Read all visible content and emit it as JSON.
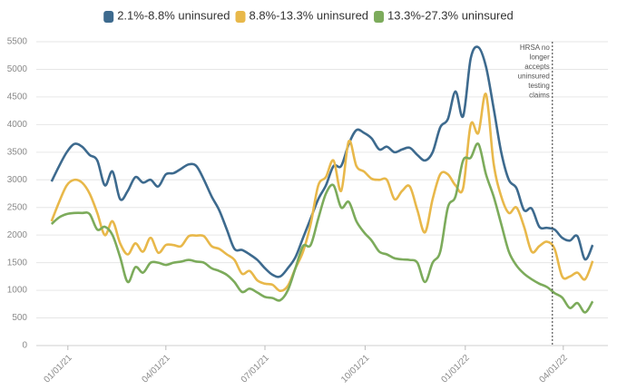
{
  "chart_data": {
    "type": "line",
    "x": [
      "2020-12-17",
      "2020-12-24",
      "2020-12-31",
      "2021-01-07",
      "2021-01-14",
      "2021-01-21",
      "2021-01-28",
      "2021-02-04",
      "2021-02-11",
      "2021-02-18",
      "2021-02-25",
      "2021-03-04",
      "2021-03-11",
      "2021-03-18",
      "2021-03-25",
      "2021-04-01",
      "2021-04-08",
      "2021-04-15",
      "2021-04-22",
      "2021-04-29",
      "2021-05-06",
      "2021-05-13",
      "2021-05-20",
      "2021-05-27",
      "2021-06-03",
      "2021-06-10",
      "2021-06-17",
      "2021-06-24",
      "2021-07-01",
      "2021-07-08",
      "2021-07-15",
      "2021-07-22",
      "2021-07-29",
      "2021-08-05",
      "2021-08-12",
      "2021-08-19",
      "2021-08-26",
      "2021-09-02",
      "2021-09-09",
      "2021-09-16",
      "2021-09-23",
      "2021-09-30",
      "2021-10-07",
      "2021-10-14",
      "2021-10-21",
      "2021-10-28",
      "2021-11-04",
      "2021-11-11",
      "2021-11-18",
      "2021-11-25",
      "2021-12-02",
      "2021-12-09",
      "2021-12-16",
      "2021-12-23",
      "2021-12-30",
      "2022-01-06",
      "2022-01-13",
      "2022-01-20",
      "2022-01-27",
      "2022-02-03",
      "2022-02-10",
      "2022-02-17",
      "2022-02-24",
      "2022-03-03",
      "2022-03-10",
      "2022-03-17",
      "2022-03-24",
      "2022-03-31",
      "2022-04-07",
      "2022-04-14",
      "2022-04-21",
      "2022-04-28"
    ],
    "series": [
      {
        "name": "2.1%-8.8% uninsured",
        "color": "#3d6a8e",
        "values": [
          2970,
          3250,
          3500,
          3650,
          3600,
          3450,
          3350,
          2900,
          3150,
          2650,
          2800,
          3050,
          2950,
          3000,
          2880,
          3100,
          3120,
          3200,
          3280,
          3250,
          3000,
          2700,
          2450,
          2100,
          1750,
          1730,
          1650,
          1550,
          1400,
          1280,
          1250,
          1400,
          1600,
          1950,
          2300,
          2650,
          2900,
          3250,
          3250,
          3650,
          3900,
          3850,
          3750,
          3550,
          3600,
          3500,
          3550,
          3580,
          3450,
          3350,
          3500,
          3950,
          4100,
          4600,
          4150,
          5200,
          5400,
          5050,
          4300,
          3500,
          3000,
          2850,
          2450,
          2480,
          2150,
          2130,
          2100,
          1950,
          1900,
          1980,
          1560,
          1820
        ]
      },
      {
        "name": "8.8%-13.3% uninsured",
        "color": "#e8b84a",
        "values": [
          2250,
          2600,
          2900,
          3000,
          2950,
          2750,
          2400,
          2000,
          2250,
          1850,
          1650,
          1850,
          1700,
          1950,
          1680,
          1820,
          1820,
          1800,
          1980,
          1990,
          1980,
          1800,
          1750,
          1650,
          1550,
          1300,
          1350,
          1180,
          1120,
          1100,
          990,
          1080,
          1400,
          1700,
          2200,
          2900,
          3050,
          3350,
          2800,
          3700,
          3250,
          3150,
          3020,
          3000,
          3000,
          2650,
          2800,
          2880,
          2450,
          2050,
          2650,
          3100,
          3100,
          2900,
          2850,
          4000,
          3850,
          4550,
          3300,
          2700,
          2400,
          2500,
          2150,
          1700,
          1800,
          1880,
          1750,
          1250,
          1250,
          1320,
          1200,
          1530
        ]
      },
      {
        "name": "13.3%-27.3% uninsured",
        "color": "#7cab5b",
        "values": [
          2200,
          2320,
          2380,
          2400,
          2400,
          2380,
          2100,
          2150,
          2000,
          1600,
          1150,
          1420,
          1320,
          1500,
          1500,
          1460,
          1500,
          1520,
          1550,
          1520,
          1500,
          1400,
          1350,
          1280,
          1150,
          970,
          1030,
          960,
          880,
          860,
          820,
          1000,
          1400,
          1800,
          1820,
          2300,
          2750,
          2900,
          2500,
          2600,
          2250,
          2050,
          1900,
          1700,
          1650,
          1580,
          1560,
          1550,
          1500,
          1150,
          1500,
          1700,
          2500,
          2700,
          3350,
          3400,
          3650,
          3100,
          2700,
          2200,
          1700,
          1450,
          1300,
          1200,
          1120,
          1060,
          950,
          870,
          680,
          770,
          600,
          800
        ]
      }
    ],
    "xlim": [
      "2020-12-03",
      "2022-05-12"
    ],
    "xticks": [
      {
        "value": "2021-01-01",
        "label": "01/01/21"
      },
      {
        "value": "2021-04-01",
        "label": "04/01/21"
      },
      {
        "value": "2021-07-01",
        "label": "07/01/21"
      },
      {
        "value": "2021-10-01",
        "label": "10/01/21"
      },
      {
        "value": "2022-01-01",
        "label": "01/01/22"
      },
      {
        "value": "2022-04-01",
        "label": "04/01/22"
      }
    ],
    "ylim": [
      0,
      5500
    ],
    "yticks": [
      0,
      500,
      1000,
      1500,
      2000,
      2500,
      3000,
      3500,
      4000,
      4500,
      5000,
      5500
    ],
    "grid": true,
    "legend": "top",
    "annotation": {
      "x": "2022-03-22",
      "lines": [
        "HRSA no",
        "longer",
        "accepts",
        "uninsured",
        "testing",
        "claims"
      ]
    }
  }
}
